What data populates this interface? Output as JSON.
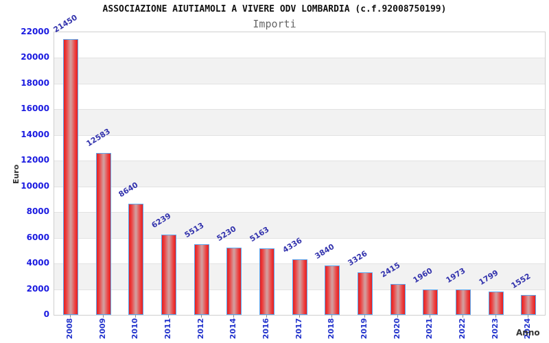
{
  "header": {
    "title": "ASSOCIAZIONE AIUTIAMOLI A VIVERE ODV LOMBARDIA (c.f.92008750199)",
    "subtitle": "Importi"
  },
  "axes": {
    "y_label": "Euro",
    "x_label": "Anno"
  },
  "colors": {
    "bar_fill": "#e51f1f",
    "bar_center": "#d49b9b",
    "bar_border": "#5aa7f0",
    "value_label": "#3333ad",
    "tick_label_blue": "#1a1ae0",
    "year_label_blue": "#2233cc",
    "band_gray": "#f2f2f2",
    "gridline": "#e2e2e2",
    "title_black": "#111111",
    "subtitle_gray": "#666666"
  },
  "chart_data": {
    "type": "bar",
    "title": "ASSOCIAZIONE AIUTIAMOLI A VIVERE ODV LOMBARDIA (c.f.92008750199)",
    "subtitle": "Importi",
    "xlabel": "Anno",
    "ylabel": "Euro",
    "categories": [
      "2008",
      "2009",
      "2010",
      "2011",
      "2012",
      "2014",
      "2016",
      "2017",
      "2018",
      "2019",
      "2020",
      "2021",
      "2022",
      "2023",
      "2024"
    ],
    "values": [
      21450,
      12583,
      8640,
      6239,
      5513,
      5230,
      5163,
      4336,
      3840,
      3326,
      2415,
      1960,
      1973,
      1799,
      1552
    ],
    "ylim": [
      0,
      22000
    ],
    "y_ticks": [
      0,
      2000,
      4000,
      6000,
      8000,
      10000,
      12000,
      14000,
      16000,
      18000,
      20000,
      22000
    ],
    "grid": "horizontal gridlines with alternating white/gray bands every 2000",
    "legend": "none"
  }
}
